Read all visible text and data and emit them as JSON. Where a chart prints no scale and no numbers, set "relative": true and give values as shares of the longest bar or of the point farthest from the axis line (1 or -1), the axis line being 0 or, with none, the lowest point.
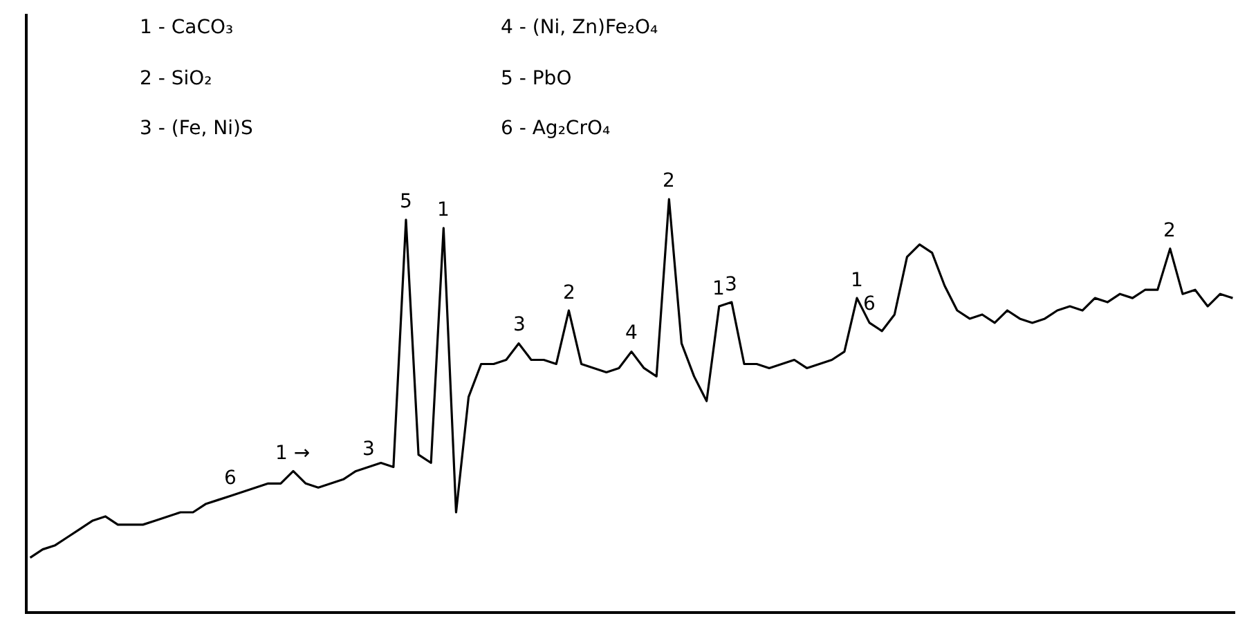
{
  "chart_data": {
    "type": "line",
    "relative": true,
    "marker": "none",
    "categories": [
      null,
      null,
      null,
      null,
      null,
      null,
      null,
      null,
      null,
      null,
      null,
      null,
      null,
      null,
      null,
      null,
      null,
      null,
      null,
      null,
      null,
      null,
      null,
      null,
      null,
      null,
      null,
      null,
      null,
      null,
      null,
      null,
      null,
      null,
      null,
      null,
      null,
      null,
      null,
      null,
      null,
      null,
      null,
      null,
      null,
      null,
      null,
      null,
      null,
      null,
      null,
      null,
      null,
      null,
      null,
      null,
      null,
      null,
      null,
      null,
      null,
      null,
      null,
      null,
      null,
      null,
      null,
      null,
      null,
      null,
      null,
      null,
      null,
      null,
      null,
      null,
      null,
      null,
      null,
      null,
      null,
      null,
      null,
      null,
      null,
      null,
      null,
      null,
      null,
      null,
      null,
      null,
      null,
      null,
      null,
      null,
      null
    ],
    "series": [
      {
        "color": "#000000",
        "values": [
          0.13,
          0.15,
          0.16,
          0.18,
          0.2,
          0.22,
          0.23,
          0.21,
          0.21,
          0.21,
          0.22,
          0.23,
          0.24,
          0.24,
          0.26,
          0.27,
          0.28,
          0.29,
          0.3,
          0.31,
          0.31,
          0.34,
          0.31,
          0.3,
          0.31,
          0.32,
          0.34,
          0.35,
          0.36,
          0.35,
          0.95,
          0.38,
          0.36,
          0.93,
          0.24,
          0.52,
          0.6,
          0.6,
          0.61,
          0.65,
          0.61,
          0.61,
          0.6,
          0.73,
          0.6,
          0.59,
          0.58,
          0.59,
          0.63,
          0.59,
          0.57,
          1.0,
          0.65,
          0.57,
          0.51,
          0.74,
          0.75,
          0.6,
          0.6,
          0.59,
          0.6,
          0.61,
          0.59,
          0.6,
          0.61,
          0.63,
          0.76,
          0.7,
          0.68,
          0.72,
          0.86,
          0.89,
          0.87,
          0.79,
          0.73,
          0.71,
          0.72,
          0.7,
          0.73,
          0.71,
          0.7,
          0.71,
          0.73,
          0.74,
          0.73,
          0.76,
          0.75,
          0.77,
          0.76,
          0.78,
          0.78,
          0.88,
          0.77,
          0.78,
          0.74,
          0.77,
          0.76
        ]
      }
    ],
    "annotations": [
      "1 - CaCO₃",
      "2 - SiO₂",
      "3 - (Fe, Ni)S",
      "4 - (Ni, Zn)Fe₂O₄",
      "5 - PbO",
      "6 - Ag₂CrO₄",
      {
        "text": "6",
        "y": 0.28
      },
      {
        "text": "1 →",
        "y": 0.34
      },
      {
        "text": "3",
        "y": 0.35
      },
      {
        "text": "5",
        "y": 0.95
      },
      {
        "text": "1",
        "y": 0.93
      },
      {
        "text": "3",
        "y": 0.65
      },
      {
        "text": "2",
        "y": 0.73
      },
      {
        "text": "4",
        "y": 0.63
      },
      {
        "text": "2",
        "y": 1.0
      },
      {
        "text": "1",
        "y": 0.74
      },
      {
        "text": "3",
        "y": 0.75
      },
      {
        "text": "1",
        "y": 0.76
      },
      {
        "text": "6",
        "y": 0.7
      },
      {
        "text": "2",
        "y": 0.88
      }
    ]
  }
}
